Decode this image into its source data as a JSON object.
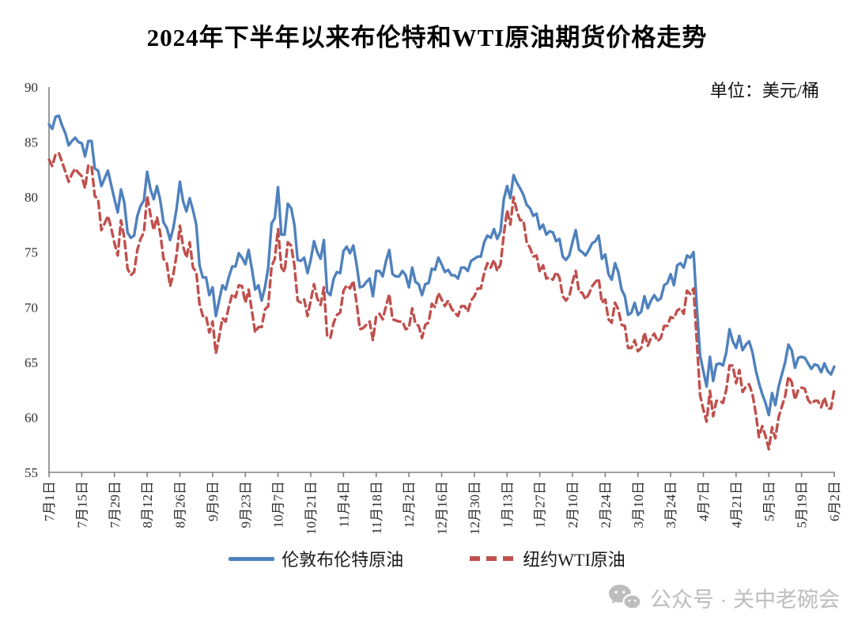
{
  "title": "2024年下半年以来布伦特和WTI原油期货价格走势",
  "unit_label": "单位：美元/桶",
  "legend": {
    "items": [
      {
        "label": "伦敦布伦特原油",
        "color": "#4F81BD",
        "style": "solid"
      },
      {
        "label": "纽约WTI原油",
        "color": "#C0504D",
        "style": "dashed"
      }
    ]
  },
  "watermark": {
    "label": "公众号 · 关中老碗会",
    "icon": "wechat-icon",
    "color": "#bdbdbd"
  },
  "chart_data": {
    "type": "line",
    "title": "2024年下半年以来布伦特和WTI原油期货价格走势",
    "xlabel": "",
    "ylabel": "单位：美元/桶",
    "ylim": [
      55,
      90
    ],
    "y_ticks": [
      55,
      60,
      65,
      70,
      75,
      80,
      85,
      90
    ],
    "grid": false,
    "legend_position": "bottom",
    "x_tick_interval": 10,
    "x_tick_labels": [
      "7月1日",
      "7月15日",
      "7月29日",
      "8月12日",
      "8月26日",
      "9月9日",
      "9月23日",
      "10月7日",
      "10月21日",
      "11月4日",
      "11月18日",
      "12月2日",
      "12月16日",
      "12月30日",
      "1月13日",
      "1月27日",
      "2月10日",
      "2月24日",
      "3月10日",
      "3月24日",
      "4月7日",
      "4月21日",
      "5月5日",
      "5月19日",
      "6月2日"
    ],
    "axis_color": "#808080",
    "series": [
      {
        "name": "伦敦布伦特原油",
        "color": "#4F81BD",
        "dash": "solid",
        "values": [
          86.6,
          86.2,
          87.3,
          87.4,
          86.5,
          85.8,
          84.7,
          85.1,
          85.4,
          85.0,
          84.9,
          83.7,
          85.1,
          85.1,
          82.6,
          82.4,
          81.0,
          81.7,
          82.4,
          81.1,
          79.8,
          78.6,
          80.7,
          79.5,
          76.8,
          76.3,
          76.5,
          78.3,
          79.2,
          79.7,
          82.3,
          80.7,
          79.8,
          81.0,
          79.7,
          77.7,
          77.2,
          76.1,
          77.2,
          79.0,
          81.4,
          79.6,
          78.7,
          79.9,
          78.8,
          77.5,
          73.8,
          72.7,
          72.7,
          71.1,
          71.8,
          69.2,
          70.6,
          72.0,
          71.6,
          72.8,
          73.7,
          73.7,
          74.9,
          74.5,
          73.9,
          75.2,
          73.5,
          71.6,
          72.0,
          70.6,
          71.8,
          73.6,
          77.6,
          78.1,
          80.9,
          76.6,
          76.6,
          79.4,
          79.0,
          77.5,
          74.3,
          74.2,
          74.5,
          73.1,
          74.3,
          76.0,
          75.0,
          74.4,
          76.1,
          71.4,
          71.1,
          72.6,
          73.2,
          73.1,
          75.1,
          75.5,
          74.9,
          75.6,
          73.9,
          71.8,
          71.9,
          72.3,
          72.6,
          71.0,
          73.3,
          73.3,
          72.8,
          74.2,
          75.2,
          73.0,
          72.8,
          72.8,
          73.3,
          72.9,
          71.8,
          73.6,
          72.3,
          72.1,
          71.1,
          72.1,
          72.2,
          73.5,
          73.4,
          74.5,
          73.9,
          73.2,
          73.4,
          72.9,
          72.9,
          72.6,
          73.6,
          73.6,
          73.3,
          74.2,
          74.4,
          74.6,
          74.6,
          75.9,
          76.5,
          76.3,
          77.1,
          76.2,
          76.9,
          79.8,
          81.0,
          79.9,
          82.0,
          81.3,
          80.8,
          80.2,
          79.3,
          79.0,
          78.3,
          78.5,
          77.1,
          77.5,
          76.6,
          76.9,
          76.8,
          76.0,
          76.2,
          74.6,
          74.3,
          74.7,
          75.9,
          77.0,
          75.2,
          75.0,
          74.7,
          75.2,
          75.8,
          76.0,
          76.5,
          74.4,
          74.8,
          73.0,
          72.5,
          74.0,
          73.2,
          71.6,
          71.0,
          69.3,
          69.5,
          70.4,
          69.3,
          69.6,
          71.0,
          69.9,
          70.6,
          71.1,
          70.6,
          70.8,
          72.0,
          72.2,
          73.0,
          72.0,
          73.8,
          74.0,
          73.6,
          74.7,
          74.5,
          75.0,
          70.1,
          65.6,
          64.2,
          62.8,
          65.5,
          63.3,
          64.8,
          64.9,
          64.7,
          65.9,
          68.0,
          66.9,
          66.3,
          67.4,
          66.1,
          66.6,
          66.9,
          65.9,
          64.3,
          63.1,
          62.1,
          61.3,
          60.2,
          62.2,
          61.1,
          62.8,
          63.9,
          65.0,
          66.6,
          66.1,
          64.5,
          65.4,
          65.5,
          65.4,
          64.9,
          64.4,
          64.8,
          64.7,
          64.1,
          64.9,
          64.2,
          63.9,
          64.6
        ]
      },
      {
        "name": "纽约WTI原油",
        "color": "#C0504D",
        "dash": "dashed",
        "values": [
          83.4,
          82.8,
          83.9,
          84.0,
          83.2,
          82.3,
          81.4,
          82.1,
          82.6,
          82.2,
          81.9,
          80.8,
          82.9,
          82.8,
          80.1,
          79.8,
          77.0,
          77.6,
          78.3,
          77.2,
          75.8,
          74.7,
          77.9,
          76.3,
          73.5,
          72.9,
          73.2,
          75.2,
          76.2,
          76.8,
          80.1,
          78.4,
          77.0,
          78.2,
          76.7,
          74.4,
          74.0,
          71.9,
          73.0,
          74.8,
          77.4,
          75.5,
          74.5,
          75.9,
          73.6,
          73.2,
          70.3,
          69.2,
          69.2,
          67.7,
          68.7,
          65.8,
          67.3,
          69.0,
          68.7,
          70.1,
          71.2,
          70.9,
          72.0,
          71.9,
          70.4,
          71.6,
          69.7,
          67.7,
          68.2,
          68.2,
          69.8,
          70.1,
          73.7,
          74.4,
          77.1,
          73.6,
          73.2,
          75.9,
          75.6,
          73.8,
          70.6,
          70.4,
          70.7,
          69.2,
          70.6,
          72.1,
          70.8,
          70.2,
          71.8,
          67.4,
          67.2,
          68.6,
          69.3,
          69.5,
          71.5,
          72.0,
          71.7,
          72.4,
          70.4,
          68.0,
          68.1,
          68.4,
          68.7,
          67.0,
          69.2,
          69.4,
          68.9,
          70.1,
          71.2,
          68.9,
          68.8,
          68.7,
          68.7,
          68.0,
          68.1,
          69.9,
          68.5,
          68.3,
          67.2,
          68.4,
          68.6,
          70.3,
          70.0,
          71.3,
          70.7,
          70.1,
          70.6,
          69.9,
          69.5,
          69.2,
          70.1,
          70.1,
          69.6,
          70.6,
          71.0,
          71.7,
          71.7,
          73.1,
          74.0,
          73.6,
          74.3,
          73.3,
          73.9,
          76.6,
          78.8,
          77.5,
          80.0,
          78.7,
          77.9,
          77.9,
          75.9,
          75.4,
          74.6,
          74.7,
          73.2,
          73.8,
          72.6,
          72.7,
          72.5,
          73.2,
          72.7,
          71.0,
          70.6,
          71.0,
          72.3,
          73.3,
          71.4,
          71.3,
          70.7,
          71.2,
          71.9,
          72.3,
          72.6,
          70.4,
          70.7,
          68.9,
          68.6,
          70.4,
          69.8,
          68.4,
          68.3,
          66.3,
          66.3,
          67.0,
          66.0,
          66.3,
          67.7,
          66.5,
          67.2,
          67.6,
          66.9,
          67.2,
          68.3,
          68.3,
          69.1,
          69.0,
          69.7,
          69.9,
          69.4,
          71.5,
          71.2,
          71.7,
          66.9,
          62.0,
          60.7,
          59.6,
          62.4,
          60.1,
          61.5,
          61.5,
          61.3,
          62.5,
          64.7,
          64.7,
          63.1,
          64.3,
          62.3,
          62.8,
          63.0,
          62.1,
          60.4,
          58.2,
          59.2,
          58.3,
          57.1,
          59.1,
          58.1,
          60.0,
          61.0,
          61.9,
          63.7,
          63.2,
          61.6,
          62.5,
          62.7,
          62.6,
          61.6,
          61.2,
          61.5,
          61.5,
          60.9,
          61.8,
          60.8,
          60.8,
          62.5
        ]
      }
    ]
  }
}
